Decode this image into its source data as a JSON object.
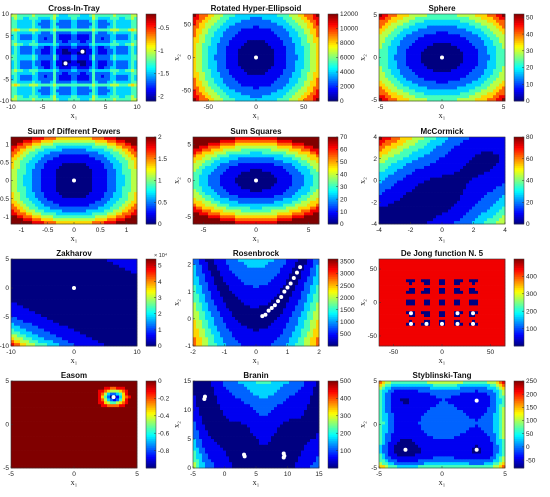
{
  "chart_data": [
    {
      "type": "heatmap",
      "title": "Cross-In-Tray",
      "xlabel": "x₁",
      "ylabel": "x₂",
      "xticks": [
        -10,
        -5,
        0,
        5,
        10
      ],
      "yticks": [
        -10,
        -5,
        0,
        5,
        10
      ],
      "xlim": [
        -10,
        10
      ],
      "ylim": [
        -10,
        10
      ],
      "colorbar_ticks": [
        "-0.5",
        "-1",
        "-1.5",
        "-2"
      ],
      "colorbar_range": [
        -2.1,
        -0.2
      ],
      "colorbar_exponent": "",
      "markers": [
        [
          1.35,
          1.35
        ],
        [
          -1.35,
          -1.35
        ]
      ]
    },
    {
      "type": "heatmap",
      "title": "Rotated Hyper-Ellipsoid",
      "xlabel": "x₁",
      "ylabel": "x₂",
      "xticks": [
        -50,
        0,
        50
      ],
      "yticks": [
        -50,
        0,
        50
      ],
      "xlim": [
        -66,
        66
      ],
      "ylim": [
        -66,
        66
      ],
      "colorbar_ticks": [
        "12000",
        "10000",
        "8000",
        "6000",
        "4000",
        "2000",
        "0"
      ],
      "colorbar_range": [
        0,
        12000
      ],
      "colorbar_exponent": "",
      "markers": [
        [
          0,
          0
        ]
      ]
    },
    {
      "type": "heatmap",
      "title": "Sphere",
      "xlabel": "x₁",
      "ylabel": "x₂",
      "xticks": [
        -5,
        0,
        5
      ],
      "yticks": [
        -5,
        0,
        5
      ],
      "xlim": [
        -5.12,
        5.12
      ],
      "ylim": [
        -5.12,
        5.12
      ],
      "colorbar_ticks": [
        "50",
        "40",
        "30",
        "20",
        "10",
        "0"
      ],
      "colorbar_range": [
        0,
        52
      ],
      "colorbar_exponent": "",
      "markers": [
        [
          0,
          0
        ]
      ]
    },
    {
      "type": "heatmap",
      "title": "Sum of Different Powers",
      "xlabel": "x₁",
      "ylabel": "x₂",
      "xticks": [
        -1,
        -0.5,
        0,
        0.5,
        1
      ],
      "yticks": [
        -1,
        -0.5,
        0,
        0.5,
        1
      ],
      "xlim": [
        -1.2,
        1.2
      ],
      "ylim": [
        -1.2,
        1.2
      ],
      "colorbar_ticks": [
        "2",
        "1.5",
        "1",
        "0.5",
        "0"
      ],
      "colorbar_range": [
        0,
        2
      ],
      "colorbar_exponent": "",
      "markers": [
        [
          0,
          0
        ]
      ]
    },
    {
      "type": "heatmap",
      "title": "Sum Squares",
      "xlabel": "x₁",
      "ylabel": "x₂",
      "xticks": [
        -5,
        0,
        5
      ],
      "yticks": [
        -5,
        0,
        5
      ],
      "xlim": [
        -6,
        6
      ],
      "ylim": [
        -6,
        6
      ],
      "colorbar_ticks": [
        "70",
        "60",
        "50",
        "40",
        "30",
        "20",
        "10",
        "0"
      ],
      "colorbar_range": [
        0,
        70
      ],
      "colorbar_exponent": "",
      "markers": [
        [
          0,
          0
        ]
      ]
    },
    {
      "type": "heatmap",
      "title": "McCormick",
      "xlabel": "x₁",
      "ylabel": "x₂",
      "xticks": [
        -4,
        -2,
        0,
        2,
        4
      ],
      "yticks": [
        -4,
        -2,
        0,
        2,
        4
      ],
      "xlim": [
        -4,
        4
      ],
      "ylim": [
        -4,
        4
      ],
      "colorbar_ticks": [
        "80",
        "60",
        "40",
        "20",
        "0"
      ],
      "colorbar_range": [
        0,
        80
      ],
      "colorbar_exponent": "",
      "markers": []
    },
    {
      "type": "heatmap",
      "title": "Zakharov",
      "xlabel": "x₁",
      "ylabel": "x₂",
      "xticks": [
        -10,
        0,
        10
      ],
      "yticks": [
        -10,
        -5,
        0,
        5
      ],
      "xlim": [
        -10,
        10
      ],
      "ylim": [
        -10,
        5
      ],
      "colorbar_ticks": [
        "5",
        "4",
        "3",
        "2",
        "1",
        "0"
      ],
      "colorbar_range": [
        0,
        5.4
      ],
      "colorbar_exponent": "× 10⁴",
      "markers": [
        [
          0,
          0
        ]
      ]
    },
    {
      "type": "heatmap",
      "title": "Rosenbrock",
      "xlabel": "x₁",
      "ylabel": "x₂",
      "xticks": [
        -2,
        -1,
        0,
        1,
        2
      ],
      "yticks": [
        -1,
        0,
        1,
        2
      ],
      "xlim": [
        -2,
        2
      ],
      "ylim": [
        -1,
        2.2
      ],
      "colorbar_ticks": [
        "3500",
        "3000",
        "2500",
        "2000",
        "1500",
        "1000",
        "500"
      ],
      "colorbar_range": [
        0,
        3600
      ],
      "colorbar_exponent": "",
      "markers": [
        [
          0.2,
          0.1
        ],
        [
          0.3,
          0.15
        ],
        [
          0.4,
          0.3
        ],
        [
          0.5,
          0.4
        ],
        [
          0.6,
          0.5
        ],
        [
          0.7,
          0.65
        ],
        [
          0.8,
          0.8
        ],
        [
          0.9,
          1.0
        ],
        [
          1.0,
          1.15
        ],
        [
          1.1,
          1.3
        ],
        [
          1.2,
          1.5
        ],
        [
          1.3,
          1.7
        ],
        [
          1.4,
          1.9
        ]
      ]
    },
    {
      "type": "heatmap",
      "title": "De Jong function N. 5",
      "xlabel": "x₁",
      "ylabel": "x₂",
      "xticks": [
        -50,
        0,
        50
      ],
      "yticks": [
        -50,
        0,
        50
      ],
      "xlim": [
        -65,
        65
      ],
      "ylim": [
        -65,
        65
      ],
      "colorbar_ticks": [
        "400",
        "300",
        "200",
        "100"
      ],
      "colorbar_range": [
        0,
        500
      ],
      "colorbar_exponent": "",
      "markers": [
        [
          -32,
          -32
        ],
        [
          -16,
          -32
        ],
        [
          0,
          -32
        ],
        [
          16,
          -32
        ],
        [
          32,
          -32
        ],
        [
          -32,
          -16
        ],
        [
          16,
          -16
        ],
        [
          32,
          -16
        ]
      ]
    },
    {
      "type": "heatmap",
      "title": "Easom",
      "xlabel": "x₁",
      "ylabel": "x₂",
      "xticks": [
        -5,
        0,
        5
      ],
      "yticks": [
        -5,
        0,
        5
      ],
      "xlim": [
        -5,
        5
      ],
      "ylim": [
        -5,
        5
      ],
      "colorbar_ticks": [
        "0",
        "-0.2",
        "-0.4",
        "-0.6",
        "-0.8"
      ],
      "colorbar_range": [
        -1,
        0
      ],
      "colorbar_exponent": "",
      "markers": [
        [
          3.14,
          3.14
        ]
      ]
    },
    {
      "type": "heatmap",
      "title": "Branin",
      "xlabel": "x₁",
      "ylabel": "x₂",
      "xticks": [
        -5,
        0,
        5,
        10,
        15
      ],
      "yticks": [
        0,
        5,
        10,
        15
      ],
      "xlim": [
        -5,
        15
      ],
      "ylim": [
        0,
        15
      ],
      "colorbar_ticks": [
        "500",
        "400",
        "300",
        "200",
        "100"
      ],
      "colorbar_range": [
        0,
        500
      ],
      "colorbar_exponent": "",
      "markers": [
        [
          -3.1,
          12.3
        ],
        [
          -3.2,
          11.9
        ],
        [
          3.1,
          2.3
        ],
        [
          3.2,
          2.0
        ],
        [
          9.4,
          2.5
        ],
        [
          9.5,
          2.1
        ],
        [
          9.4,
          1.8
        ]
      ]
    },
    {
      "type": "heatmap",
      "title": "Styblinski-Tang",
      "xlabel": "x₁",
      "ylabel": "x₂",
      "xticks": [
        -5,
        0,
        5
      ],
      "yticks": [
        -5,
        0,
        5
      ],
      "xlim": [
        -5,
        5
      ],
      "ylim": [
        -5,
        5
      ],
      "colorbar_ticks": [
        "250",
        "200",
        "150",
        "100",
        "50",
        "0",
        "-50"
      ],
      "colorbar_range": [
        -80,
        250
      ],
      "colorbar_exponent": "",
      "markers": [
        [
          -2.9,
          -2.9
        ],
        [
          2.75,
          -2.9
        ],
        [
          2.75,
          2.75
        ]
      ]
    }
  ]
}
